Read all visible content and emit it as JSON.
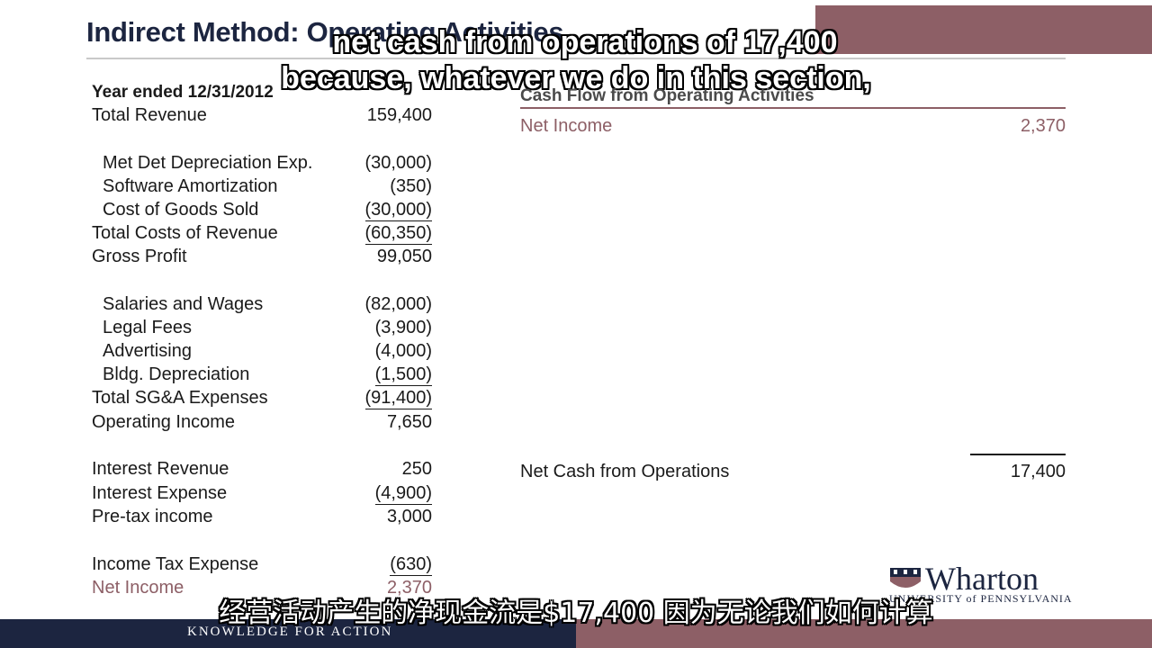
{
  "slide": {
    "title": "Indirect Method: Operating Activities"
  },
  "subtitles": {
    "en_line1": "net cash from operations of 17,400",
    "en_line2": "because, whatever we do in this section,",
    "cn": "经营活动产生的净现金流是$17,400 因为无论我们如何计算"
  },
  "income_statement": {
    "header": "Year ended 12/31/2012",
    "rows": [
      {
        "label": "Total Revenue",
        "value": "159,400"
      },
      {
        "label": "Met Det Depreciation Exp.",
        "value": "(30,000)"
      },
      {
        "label": "Software Amortization",
        "value": "(350)"
      },
      {
        "label": "Cost of Goods Sold",
        "value": "(30,000)"
      },
      {
        "label": "Total Costs of Revenue",
        "value": "(60,350)"
      },
      {
        "label": "Gross Profit",
        "value": "99,050"
      },
      {
        "label": "Salaries and Wages",
        "value": "(82,000)"
      },
      {
        "label": "Legal Fees",
        "value": "(3,900)"
      },
      {
        "label": "Advertising",
        "value": "(4,000)"
      },
      {
        "label": "Bldg. Depreciation",
        "value": "(1,500)"
      },
      {
        "label": "Total SG&A Expenses",
        "value": "(91,400)"
      },
      {
        "label": "Operating Income",
        "value": "7,650"
      },
      {
        "label": "Interest Revenue",
        "value": "250"
      },
      {
        "label": "Interest Expense",
        "value": "(4,900)"
      },
      {
        "label": "Pre-tax income",
        "value": "3,000"
      },
      {
        "label": "Income Tax Expense",
        "value": "(630)"
      },
      {
        "label": "Net Income",
        "value": "2,370"
      }
    ]
  },
  "cash_flow": {
    "header": "Cash Flow from Operating Activities",
    "net_income_label": "Net Income",
    "net_income_value": "2,370",
    "net_cash_label": "Net Cash from Operations",
    "net_cash_value": "17,400"
  },
  "branding": {
    "logo_word": "Wharton",
    "logo_sub": "UNIVERSITY of PENNSYLVANIA",
    "tagline": "KNOWLEDGE FOR ACTION"
  }
}
